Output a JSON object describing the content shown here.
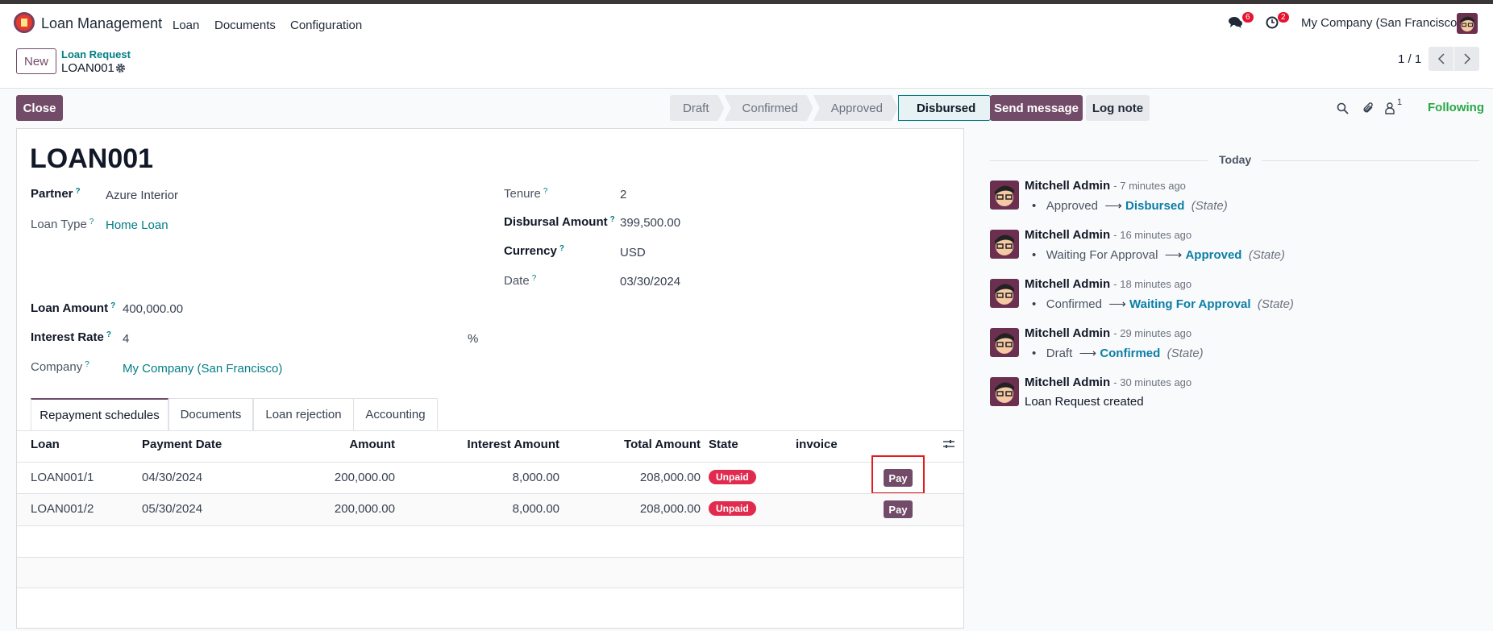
{
  "navbar": {
    "app_name": "Loan Management",
    "menu": [
      "Loan",
      "Documents",
      "Configuration"
    ],
    "messages_count": "6",
    "activities_count": "2",
    "company": "My Company (San Francisco)"
  },
  "control_panel": {
    "new_label": "New",
    "breadcrumb_parent": "Loan Request",
    "record_name": "LOAN001",
    "pager": "1 / 1"
  },
  "form": {
    "close_label": "Close",
    "stages": [
      "Draft",
      "Confirmed",
      "Approved",
      "Disbursed"
    ],
    "active_stage": "Disbursed",
    "title": "LOAN001",
    "fields": {
      "partner_label": "Partner",
      "partner": "Azure Interior",
      "loan_type_label": "Loan Type",
      "loan_type": "Home Loan",
      "tenure_label": "Tenure",
      "tenure": "2",
      "disbursal_label": "Disbursal Amount",
      "disbursal": "399,500.00",
      "currency_label": "Currency",
      "currency": "USD",
      "date_label": "Date",
      "date": "03/30/2024",
      "loan_amount_label": "Loan Amount",
      "loan_amount": "400,000.00",
      "interest_rate_label": "Interest Rate",
      "interest_rate": "4",
      "interest_unit": "%",
      "company_label": "Company",
      "company": "My Company (San Francisco)",
      "help": "?"
    },
    "tabs": [
      "Repayment schedules",
      "Documents",
      "Loan rejection",
      "Accounting"
    ],
    "table": {
      "columns": [
        "Loan",
        "Payment Date",
        "Amount",
        "Interest Amount",
        "Total Amount",
        "State",
        "invoice"
      ],
      "rows": [
        {
          "loan": "LOAN001/1",
          "date": "04/30/2024",
          "amount": "200,000.00",
          "interest": "8,000.00",
          "total": "208,000.00",
          "state": "Unpaid",
          "action": "Pay"
        },
        {
          "loan": "LOAN001/2",
          "date": "05/30/2024",
          "amount": "200,000.00",
          "interest": "8,000.00",
          "total": "208,000.00",
          "state": "Unpaid",
          "action": "Pay"
        }
      ]
    }
  },
  "chatter": {
    "send_message": "Send message",
    "log_note": "Log note",
    "followers_count": "1",
    "following": "Following",
    "date_separator": "Today",
    "field_name": "(State)",
    "messages": [
      {
        "author": "Mitchell Admin",
        "time": "- 7 minutes ago",
        "old": "Approved",
        "new": "Disbursed"
      },
      {
        "author": "Mitchell Admin",
        "time": "- 16 minutes ago",
        "old": "Waiting For Approval",
        "new": "Approved"
      },
      {
        "author": "Mitchell Admin",
        "time": "- 18 minutes ago",
        "old": "Confirmed",
        "new": "Waiting For Approval"
      },
      {
        "author": "Mitchell Admin",
        "time": "- 29 minutes ago",
        "old": "Draft",
        "new": "Confirmed"
      },
      {
        "author": "Mitchell Admin",
        "time": "- 30 minutes ago",
        "body": "Loan Request created"
      }
    ]
  },
  "colors": {
    "brand": "#714b67",
    "link": "#017e84",
    "danger": "#e02b4f",
    "following": "#28a745",
    "highlight_box": "#e51a1a"
  }
}
